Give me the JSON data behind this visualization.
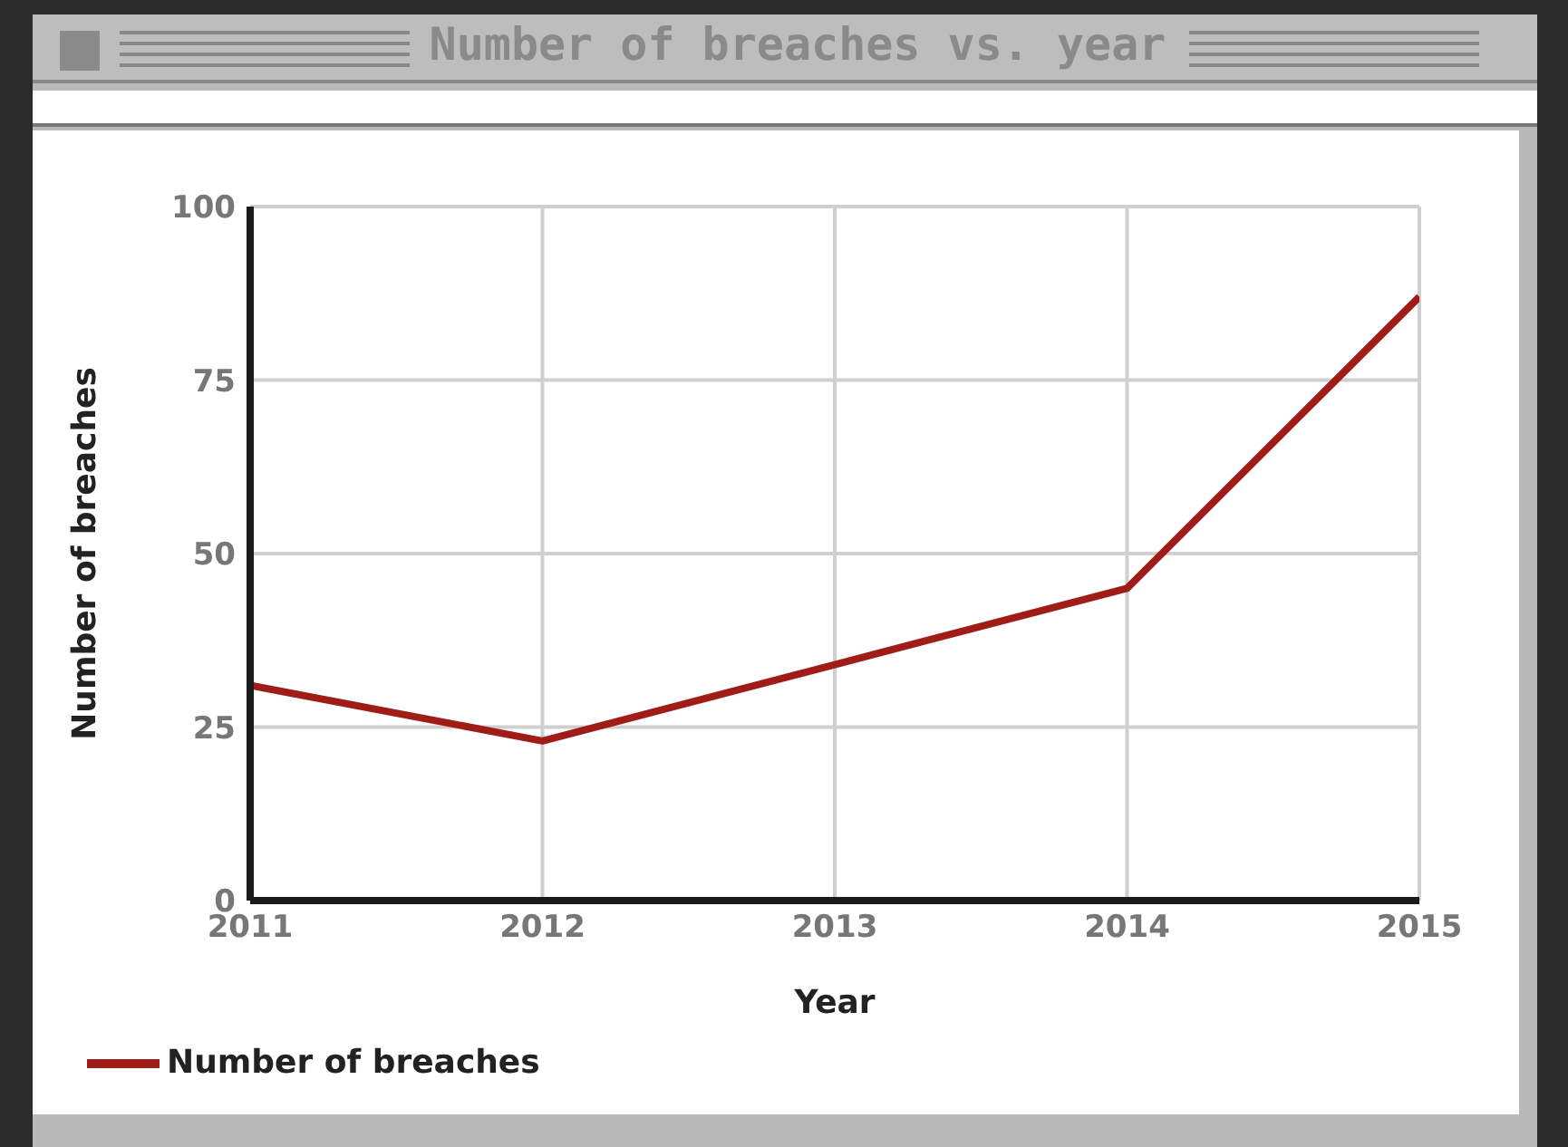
{
  "chart_data": {
    "type": "line",
    "title": "Number of breaches vs. year",
    "xlabel": "Year",
    "ylabel": "Number of breaches",
    "x": [
      2011,
      2012,
      2013,
      2014,
      2015
    ],
    "series": [
      {
        "name": "Number of breaches",
        "color": "#a01c16",
        "values": [
          31,
          23,
          34,
          45,
          87
        ]
      }
    ],
    "xlim": [
      2011,
      2015
    ],
    "xticks": [
      2011,
      2012,
      2013,
      2014,
      2015
    ],
    "ylim": [
      0,
      100
    ],
    "yticks": [
      0,
      25,
      50,
      75,
      100
    ],
    "grid": true,
    "legend": "bottom left",
    "marker": "none",
    "line_style": "solid"
  }
}
